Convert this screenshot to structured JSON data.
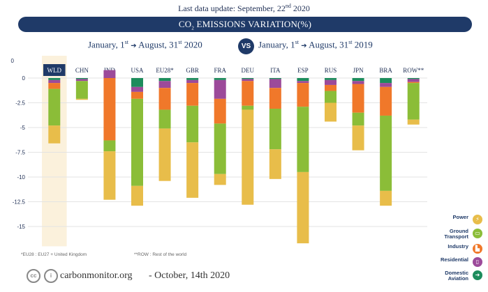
{
  "header": {
    "update_text": "Last data update: September, 22",
    "update_sup": "nd",
    "update_year": " 2020",
    "banner_prefix": "CO",
    "banner_sub": "2",
    "banner_rest": " EMISSIONS VARIATION(%)"
  },
  "periods": {
    "left_start": "January, 1",
    "left_start_sup": "st",
    "left_arrow": "➔",
    "left_end": "August, 31",
    "left_end_sup": "st",
    "left_year": " 2020",
    "vs": "VS",
    "right_start": "January, 1",
    "right_start_sup": "st",
    "right_arrow": "➔",
    "right_end": "August, 31",
    "right_end_sup": "st",
    "right_year": " 2019"
  },
  "colors": {
    "Power": "#e8bd4a",
    "Ground Transport": "#8bbd38",
    "Industry": "#f0782a",
    "Residential": "#9c4a9a",
    "Domestic Aviation": "#1d8c5c",
    "highlight": "#fbf1dc",
    "wld_label_bg": "#1f3a68"
  },
  "chart_data": {
    "type": "bar",
    "stacked": true,
    "categories": [
      "WLD",
      "CHN",
      "IND",
      "USA",
      "EU28*",
      "GBR",
      "FRA",
      "DEU",
      "ITA",
      "ESP",
      "RUS",
      "JPN",
      "BRA",
      "ROW**"
    ],
    "y_ticks": [
      0,
      -2.5,
      -5,
      -7.5,
      -10,
      -12.5,
      -15
    ],
    "y_tick_labels": [
      "0",
      "-2.5",
      "-5",
      "-7.5",
      "-10",
      "-12.5",
      "-15"
    ],
    "ylim": [
      -17,
      1.5
    ],
    "highlight_category": "WLD",
    "grid": true,
    "legend_position": "right",
    "series": [
      {
        "name": "Domestic Aviation",
        "values": [
          -0.2,
          -0.1,
          0,
          -0.9,
          -0.3,
          -0.2,
          -0.2,
          -0.1,
          -0.1,
          -0.3,
          -0.2,
          -0.3,
          -0.5,
          -0.1
        ]
      },
      {
        "name": "Residential",
        "values": [
          -0.3,
          -0.2,
          0.8,
          -0.5,
          -0.7,
          -0.3,
          -1.9,
          -0.2,
          -0.9,
          -0.2,
          -0.5,
          -0.3,
          -0.4,
          -0.3
        ]
      },
      {
        "name": "Industry",
        "values": [
          -0.6,
          0,
          -6.3,
          -0.7,
          -2.2,
          -2.3,
          -2.5,
          -2.5,
          -2.1,
          -2.4,
          -0.6,
          -2.9,
          -2.9,
          -0.1
        ]
      },
      {
        "name": "Ground Transport",
        "values": [
          -3.7,
          -1.8,
          -1.1,
          -8.8,
          -1.9,
          -3.7,
          -5.1,
          -0.4,
          -4.1,
          -6.6,
          -1.2,
          -1.3,
          -7.6,
          -3.7
        ]
      },
      {
        "name": "Power",
        "values": [
          -1.8,
          -0.1,
          -4.9,
          -2.0,
          -5.3,
          -5.6,
          -1.1,
          -9.6,
          -3.0,
          -7.2,
          -1.9,
          -2.5,
          -1.5,
          -0.5
        ]
      }
    ]
  },
  "footnotes": {
    "eu28": "*EU28 : EU27 + United  Kingdom",
    "row": "**ROW : Rest of the world"
  },
  "legend": [
    {
      "label": "Power",
      "icon": "lightning-icon",
      "glyph": "⚡"
    },
    {
      "label": "Ground\nTransport",
      "icon": "car-icon",
      "glyph": "▭"
    },
    {
      "label": "Industry",
      "icon": "factory-icon",
      "glyph": "▙"
    },
    {
      "label": "Residential",
      "icon": "building-icon",
      "glyph": "▯"
    },
    {
      "label": "Domestic\nAviation",
      "icon": "airplane-icon",
      "glyph": "➜"
    }
  ],
  "footer": {
    "cc": "cc",
    "person": "i",
    "site": "carbonmonitor.org",
    "date": "-  October, 14th 2020"
  }
}
